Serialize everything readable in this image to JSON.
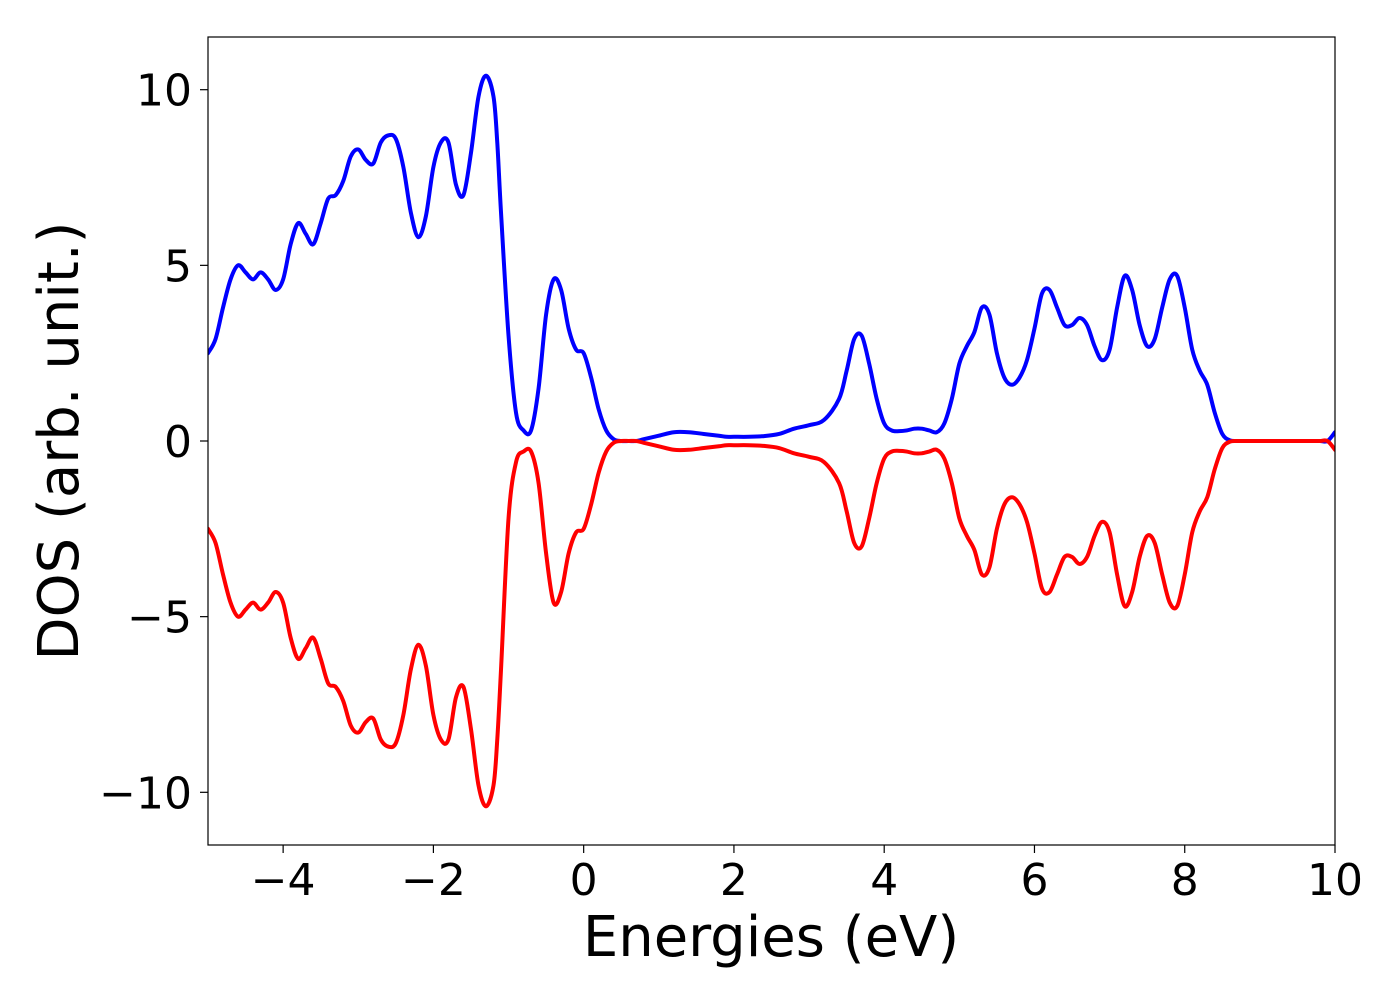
{
  "chart_data": {
    "type": "line",
    "title": "",
    "xlabel": "Energies (eV)",
    "ylabel": "DOS (arb. unit.)",
    "xlim": [
      -5,
      10
    ],
    "ylim": [
      -11.5,
      11.5
    ],
    "x_ticks": [
      -4,
      -2,
      0,
      2,
      4,
      6,
      8,
      10
    ],
    "x_tick_labels": [
      "−4",
      "−2",
      "0",
      "2",
      "4",
      "6",
      "8",
      "10"
    ],
    "y_ticks": [
      10,
      5,
      0,
      -5,
      -10
    ],
    "y_tick_labels": [
      "10",
      "5",
      "0",
      "−5",
      "−10"
    ],
    "grid": false,
    "legend": "none",
    "series": [
      {
        "color": "#0000ff",
        "x": [
          -5.0,
          -4.9,
          -4.8,
          -4.7,
          -4.6,
          -4.5,
          -4.4,
          -4.3,
          -4.2,
          -4.1,
          -4.0,
          -3.9,
          -3.8,
          -3.7,
          -3.6,
          -3.5,
          -3.4,
          -3.3,
          -3.2,
          -3.1,
          -3.0,
          -2.9,
          -2.8,
          -2.7,
          -2.6,
          -2.5,
          -2.4,
          -2.3,
          -2.2,
          -2.1,
          -2.0,
          -1.9,
          -1.8,
          -1.7,
          -1.6,
          -1.5,
          -1.4,
          -1.3,
          -1.2,
          -1.15,
          -1.1,
          -1.0,
          -0.9,
          -0.8,
          -0.7,
          -0.6,
          -0.5,
          -0.4,
          -0.3,
          -0.2,
          -0.1,
          0.0,
          0.1,
          0.2,
          0.3,
          0.4,
          0.5,
          0.6,
          0.7,
          0.8,
          1.0,
          1.2,
          1.4,
          1.6,
          1.8,
          1.9,
          2.0,
          2.2,
          2.4,
          2.6,
          2.8,
          3.0,
          3.2,
          3.4,
          3.5,
          3.6,
          3.7,
          3.8,
          3.9,
          4.0,
          4.1,
          4.2,
          4.3,
          4.4,
          4.5,
          4.6,
          4.7,
          4.8,
          4.9,
          5.0,
          5.1,
          5.2,
          5.3,
          5.4,
          5.5,
          5.6,
          5.7,
          5.8,
          5.9,
          6.0,
          6.1,
          6.2,
          6.3,
          6.4,
          6.5,
          6.6,
          6.7,
          6.8,
          6.9,
          7.0,
          7.1,
          7.2,
          7.3,
          7.4,
          7.5,
          7.6,
          7.7,
          7.8,
          7.9,
          8.0,
          8.1,
          8.2,
          8.3,
          8.4,
          8.5,
          8.6,
          8.7,
          8.8,
          8.9,
          9.0,
          9.1,
          9.2,
          9.3,
          9.4,
          9.5,
          9.6,
          9.7,
          9.8,
          9.9,
          10.0
        ],
        "y": [
          2.5,
          2.9,
          3.8,
          4.6,
          5.0,
          4.8,
          4.6,
          4.8,
          4.6,
          4.3,
          4.6,
          5.6,
          6.2,
          5.9,
          5.6,
          6.2,
          6.9,
          7.0,
          7.4,
          8.1,
          8.3,
          8.0,
          7.9,
          8.5,
          8.7,
          8.6,
          7.8,
          6.5,
          5.8,
          6.4,
          7.8,
          8.5,
          8.5,
          7.3,
          7.0,
          8.2,
          9.8,
          10.4,
          9.8,
          8.5,
          6.5,
          3.0,
          0.8,
          0.3,
          0.3,
          1.5,
          3.6,
          4.6,
          4.3,
          3.2,
          2.6,
          2.5,
          1.8,
          0.9,
          0.3,
          0.05,
          0.0,
          0.0,
          0.0,
          0.05,
          0.15,
          0.25,
          0.25,
          0.2,
          0.15,
          0.12,
          0.12,
          0.12,
          0.14,
          0.2,
          0.35,
          0.45,
          0.6,
          1.2,
          2.0,
          2.9,
          3.0,
          2.2,
          1.2,
          0.5,
          0.3,
          0.28,
          0.3,
          0.35,
          0.35,
          0.3,
          0.25,
          0.5,
          1.2,
          2.2,
          2.7,
          3.1,
          3.8,
          3.6,
          2.5,
          1.8,
          1.6,
          1.8,
          2.3,
          3.2,
          4.2,
          4.3,
          3.8,
          3.3,
          3.3,
          3.5,
          3.3,
          2.7,
          2.3,
          2.6,
          3.8,
          4.7,
          4.3,
          3.3,
          2.7,
          2.9,
          3.8,
          4.6,
          4.7,
          3.8,
          2.6,
          2.0,
          1.6,
          0.8,
          0.2,
          0.02,
          0.0,
          0.0,
          0.0,
          0.0,
          0.0,
          0.0,
          0.0,
          0.0,
          0.0,
          0.0,
          0.0,
          0.0,
          0.0,
          0.25
        ]
      },
      {
        "color": "#ff0000",
        "x": [
          -5.0,
          -4.9,
          -4.8,
          -4.7,
          -4.6,
          -4.5,
          -4.4,
          -4.3,
          -4.2,
          -4.1,
          -4.0,
          -3.9,
          -3.8,
          -3.7,
          -3.6,
          -3.5,
          -3.4,
          -3.3,
          -3.2,
          -3.1,
          -3.0,
          -2.9,
          -2.8,
          -2.7,
          -2.6,
          -2.5,
          -2.4,
          -2.3,
          -2.2,
          -2.1,
          -2.0,
          -1.9,
          -1.8,
          -1.7,
          -1.6,
          -1.5,
          -1.4,
          -1.3,
          -1.2,
          -1.15,
          -1.1,
          -1.0,
          -0.9,
          -0.8,
          -0.7,
          -0.6,
          -0.5,
          -0.4,
          -0.3,
          -0.2,
          -0.1,
          0.0,
          0.1,
          0.2,
          0.3,
          0.4,
          0.5,
          0.6,
          0.7,
          0.8,
          1.0,
          1.2,
          1.4,
          1.6,
          1.8,
          1.9,
          2.0,
          2.2,
          2.4,
          2.6,
          2.8,
          3.0,
          3.2,
          3.4,
          3.5,
          3.6,
          3.7,
          3.8,
          3.9,
          4.0,
          4.1,
          4.2,
          4.3,
          4.4,
          4.5,
          4.6,
          4.7,
          4.8,
          4.9,
          5.0,
          5.1,
          5.2,
          5.3,
          5.4,
          5.5,
          5.6,
          5.7,
          5.8,
          5.9,
          6.0,
          6.1,
          6.2,
          6.3,
          6.4,
          6.5,
          6.6,
          6.7,
          6.8,
          6.9,
          7.0,
          7.1,
          7.2,
          7.3,
          7.4,
          7.5,
          7.6,
          7.7,
          7.8,
          7.9,
          8.0,
          8.1,
          8.2,
          8.3,
          8.4,
          8.5,
          8.6,
          8.7,
          8.8,
          8.9,
          9.0,
          9.1,
          9.2,
          9.3,
          9.4,
          9.5,
          9.6,
          9.7,
          9.8,
          9.9,
          10.0
        ],
        "y": [
          -2.5,
          -2.9,
          -3.8,
          -4.6,
          -5.0,
          -4.8,
          -4.6,
          -4.8,
          -4.6,
          -4.3,
          -4.6,
          -5.6,
          -6.2,
          -5.9,
          -5.6,
          -6.2,
          -6.9,
          -7.0,
          -7.4,
          -8.1,
          -8.3,
          -8.0,
          -7.9,
          -8.5,
          -8.7,
          -8.6,
          -7.8,
          -6.5,
          -5.8,
          -6.4,
          -7.8,
          -8.5,
          -8.5,
          -7.3,
          -7.0,
          -8.2,
          -9.8,
          -10.4,
          -9.8,
          -8.5,
          -6.5,
          -2.2,
          -0.6,
          -0.3,
          -0.3,
          -1.2,
          -3.2,
          -4.6,
          -4.3,
          -3.2,
          -2.6,
          -2.5,
          -1.8,
          -0.9,
          -0.3,
          -0.05,
          0.0,
          0.0,
          0.0,
          -0.05,
          -0.15,
          -0.25,
          -0.25,
          -0.2,
          -0.15,
          -0.12,
          -0.12,
          -0.12,
          -0.14,
          -0.2,
          -0.35,
          -0.45,
          -0.6,
          -1.2,
          -2.0,
          -2.9,
          -3.0,
          -2.2,
          -1.2,
          -0.5,
          -0.3,
          -0.28,
          -0.3,
          -0.35,
          -0.35,
          -0.3,
          -0.25,
          -0.5,
          -1.2,
          -2.2,
          -2.7,
          -3.1,
          -3.8,
          -3.6,
          -2.5,
          -1.8,
          -1.6,
          -1.8,
          -2.3,
          -3.2,
          -4.2,
          -4.3,
          -3.8,
          -3.3,
          -3.3,
          -3.5,
          -3.3,
          -2.7,
          -2.3,
          -2.6,
          -3.8,
          -4.7,
          -4.3,
          -3.3,
          -2.7,
          -2.9,
          -3.8,
          -4.6,
          -4.7,
          -3.8,
          -2.6,
          -2.0,
          -1.6,
          -0.8,
          -0.2,
          -0.02,
          0.0,
          0.0,
          0.0,
          0.0,
          0.0,
          0.0,
          0.0,
          0.0,
          0.0,
          0.0,
          0.0,
          0.0,
          0.0,
          -0.25
        ]
      }
    ]
  }
}
